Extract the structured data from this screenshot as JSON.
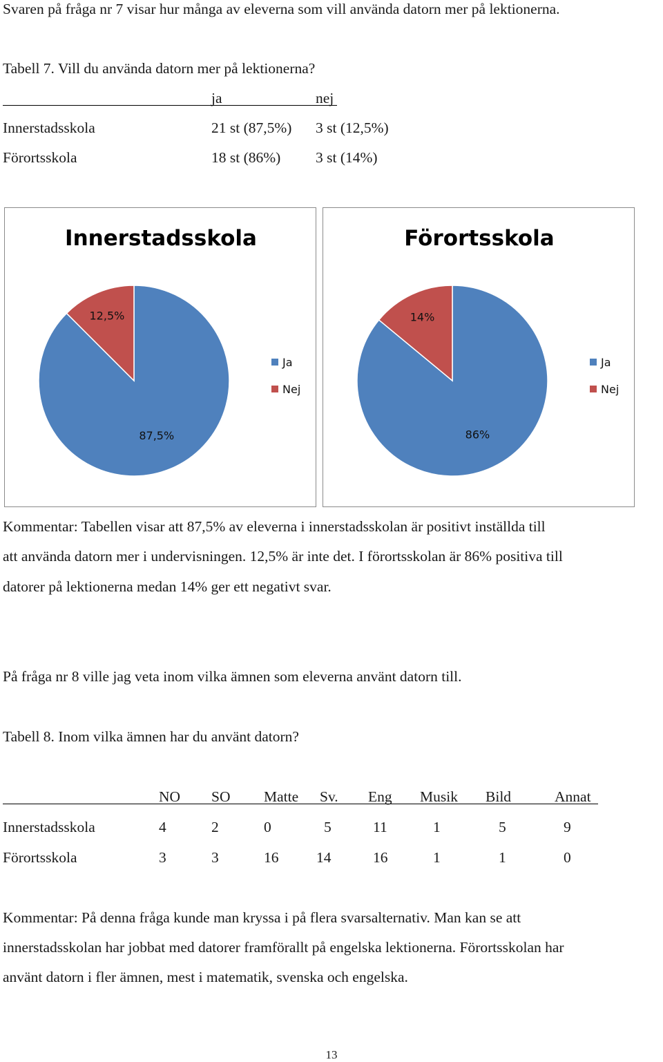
{
  "intro": "Svaren på fråga nr 7 visar hur många av eleverna som vill använda datorn mer på lektionerna.",
  "table7": {
    "caption": "Tabell 7. Vill du använda datorn mer på lektionerna?",
    "headers": [
      "ja",
      "nej"
    ],
    "rows": [
      {
        "label": "Innerstadsskola",
        "ja": "21 st (87,5%)",
        "nej": "3 st (12,5%)"
      },
      {
        "label": "Förortsskola",
        "ja": "18 st (86%)",
        "nej": "3 st (14%)"
      }
    ]
  },
  "chart_data": [
    {
      "type": "pie",
      "title": "Innerstadsskola",
      "categories": [
        "Ja",
        "Nej"
      ],
      "values": [
        87.5,
        12.5
      ],
      "data_labels": [
        "87,5%",
        "12,5%"
      ],
      "colors": [
        "#4F81BD",
        "#C0504D"
      ],
      "legend": "right",
      "legend_labels": [
        "Ja",
        "Nej"
      ]
    },
    {
      "type": "pie",
      "title": "Förortsskola",
      "categories": [
        "Ja",
        "Nej"
      ],
      "values": [
        86,
        14
      ],
      "data_labels": [
        "86%",
        "14%"
      ],
      "colors": [
        "#4F81BD",
        "#C0504D"
      ],
      "legend": "right",
      "legend_labels": [
        "Ja",
        "Nej"
      ]
    }
  ],
  "comment7": [
    "Kommentar: Tabellen visar att 87,5% av eleverna i innerstadsskolan är positivt inställda till",
    "att använda datorn mer i undervisningen. 12,5% är inte det. I förortsskolan är 86% positiva till",
    "datorer på lektionerna medan 14% ger ett negativt svar."
  ],
  "question8": "På fråga nr 8 ville jag veta inom vilka ämnen som eleverna använt datorn till.",
  "table8": {
    "caption": "Tabell 8. Inom vilka ämnen har du använt datorn?",
    "headers": [
      "NO",
      "SO",
      "Matte",
      "Sv.",
      "Eng",
      "Musik",
      "Bild",
      "Annat"
    ],
    "rows": [
      {
        "label": "Innerstadsskola",
        "values": [
          "4",
          "2",
          "0",
          "5",
          "11",
          "1",
          "5",
          "9"
        ]
      },
      {
        "label": "Förortsskola",
        "values": [
          "3",
          "3",
          "16",
          "14",
          "16",
          "1",
          "1",
          "0"
        ]
      }
    ]
  },
  "comment8": [
    "Kommentar: På denna fråga kunde man kryssa i på flera svarsalternativ. Man kan se att",
    "innerstadsskolan har jobbat med datorer framförallt på engelska lektionerna. Förortsskolan har",
    "använt datorn i fler ämnen, mest i matematik, svenska och engelska."
  ],
  "page_number": "13"
}
